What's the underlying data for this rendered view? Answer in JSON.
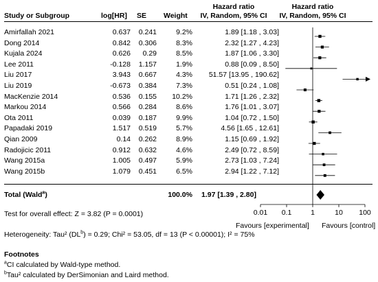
{
  "headers": {
    "study": "Study or Subgroup",
    "loghr": "log[HR]",
    "se": "SE",
    "weight": "Weight",
    "hr_title": "Hazard ratio",
    "hr_sub": "IV, Random, 95% CI",
    "plot_title": "Hazard ratio",
    "plot_sub": "IV, Random, 95% CI"
  },
  "total": {
    "label": "Total (Wald",
    "label_sup": "a",
    "label_close": ")",
    "weight": "100.0%",
    "hr_text": "1.97 [1.39 , 2.80]"
  },
  "overall_effect": "Test for overall effect: Z = 3.82 (P = 0.0001)",
  "heterogeneity": {
    "pre": "Heterogeneity: Tau² (DL",
    "sup": "b",
    "post": ") = 0.29; Chi² = 53.05, df = 13 (P < 0.00001); I² = 75%"
  },
  "footnotes": {
    "title": "Footnotes",
    "a_sup": "a",
    "a_text": "CI calculated by Wald-type method.",
    "b_sup": "b",
    "b_text": "Tau² calculated by DerSimonian and Laird method."
  },
  "axis": {
    "favours_left": "Favours [experimental]",
    "favours_right": "Favours [control]"
  },
  "chart_data": {
    "type": "forest",
    "scale": "log",
    "xlim": [
      0.01,
      100
    ],
    "ticks": [
      {
        "v": 0.01,
        "label": "0.01"
      },
      {
        "v": 0.1,
        "label": "0.1"
      },
      {
        "v": 1,
        "label": "1"
      },
      {
        "v": 10,
        "label": "10"
      },
      {
        "v": 100,
        "label": "100"
      }
    ],
    "studies": [
      {
        "name": "Amirfallah 2021",
        "loghr": "0.637",
        "se": "0.241",
        "weight": "9.2%",
        "w": 9.2,
        "hr": 1.89,
        "lo": 1.18,
        "hi": 3.03,
        "text": "1.89 [1.18 , 3.03]"
      },
      {
        "name": "Dong 2014",
        "loghr": "0.842",
        "se": "0.306",
        "weight": "8.3%",
        "w": 8.3,
        "hr": 2.32,
        "lo": 1.27,
        "hi": 4.23,
        "text": "2.32 [1.27 , 4.23]"
      },
      {
        "name": "Kujala 2024",
        "loghr": "0.626",
        "se": "0.29",
        "weight": "8.5%",
        "w": 8.5,
        "hr": 1.87,
        "lo": 1.06,
        "hi": 3.3,
        "text": "1.87 [1.06 , 3.30]"
      },
      {
        "name": "Lee 2011",
        "loghr": "-0.128",
        "se": "1.157",
        "weight": "1.9%",
        "w": 1.9,
        "hr": 0.88,
        "lo": 0.09,
        "hi": 8.5,
        "text": "0.88 [0.09 , 8.50]"
      },
      {
        "name": "Liu 2017",
        "loghr": "3.943",
        "se": "0.667",
        "weight": "4.3%",
        "w": 4.3,
        "hr": 51.57,
        "lo": 13.95,
        "hi": 190.62,
        "text": "51.57 [13.95 , 190.62]"
      },
      {
        "name": "Liu 2019",
        "loghr": "-0.673",
        "se": "0.384",
        "weight": "7.3%",
        "w": 7.3,
        "hr": 0.51,
        "lo": 0.24,
        "hi": 1.08,
        "text": "0.51 [0.24 , 1.08]"
      },
      {
        "name": "MacKenzie 2014",
        "loghr": "0.536",
        "se": "0.155",
        "weight": "10.2%",
        "w": 10.2,
        "hr": 1.71,
        "lo": 1.26,
        "hi": 2.32,
        "text": "1.71 [1.26 , 2.32]"
      },
      {
        "name": "Markou 2014",
        "loghr": "0.566",
        "se": "0.284",
        "weight": "8.6%",
        "w": 8.6,
        "hr": 1.76,
        "lo": 1.01,
        "hi": 3.07,
        "text": "1.76 [1.01 , 3.07]"
      },
      {
        "name": "Ota 2011",
        "loghr": "0.039",
        "se": "0.187",
        "weight": "9.9%",
        "w": 9.9,
        "hr": 1.04,
        "lo": 0.72,
        "hi": 1.5,
        "text": "1.04 [0.72 , 1.50]"
      },
      {
        "name": "Papadaki 2019",
        "loghr": "1.517",
        "se": "0.519",
        "weight": "5.7%",
        "w": 5.7,
        "hr": 4.56,
        "lo": 1.65,
        "hi": 12.61,
        "text": "4.56 [1.65 , 12.61]"
      },
      {
        "name": "Qian 2009",
        "loghr": "0.14",
        "se": "0.262",
        "weight": "8.9%",
        "w": 8.9,
        "hr": 1.15,
        "lo": 0.69,
        "hi": 1.92,
        "text": "1.15 [0.69 , 1.92]"
      },
      {
        "name": "Radojicic 2011",
        "loghr": "0.912",
        "se": "0.632",
        "weight": "4.6%",
        "w": 4.6,
        "hr": 2.49,
        "lo": 0.72,
        "hi": 8.59,
        "text": "2.49 [0.72 , 8.59]"
      },
      {
        "name": "Wang 2015a",
        "loghr": "1.005",
        "se": "0.497",
        "weight": "5.9%",
        "w": 5.9,
        "hr": 2.73,
        "lo": 1.03,
        "hi": 7.24,
        "text": "2.73 [1.03 , 7.24]"
      },
      {
        "name": "Wang 2015b",
        "loghr": "1.079",
        "se": "0.451",
        "weight": "6.5%",
        "w": 6.5,
        "hr": 2.94,
        "lo": 1.22,
        "hi": 7.12,
        "text": "2.94 [1.22 , 7.12]"
      }
    ],
    "pooled": {
      "hr": 1.97,
      "lo": 1.39,
      "hi": 2.8
    }
  }
}
